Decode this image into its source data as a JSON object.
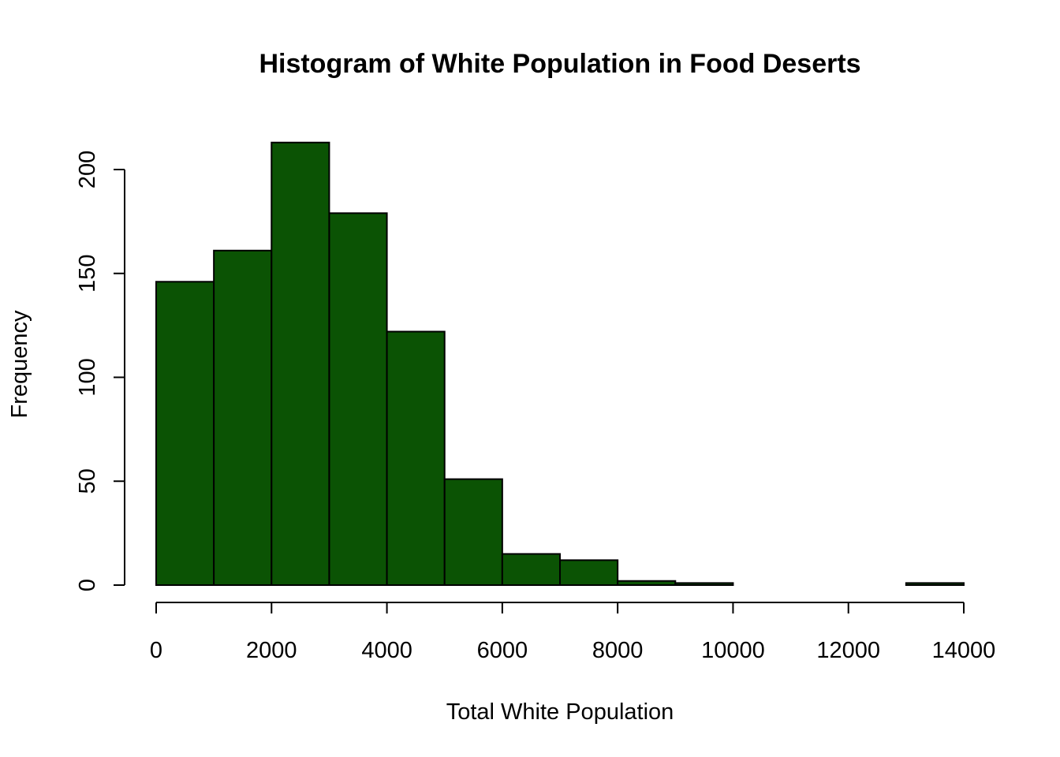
{
  "chart_data": {
    "type": "bar",
    "title": "Histogram of White Population in Food Deserts",
    "xlabel": "Total White Population",
    "ylabel": "Frequency",
    "bins": [
      {
        "start": 0,
        "end": 1000,
        "count": 146
      },
      {
        "start": 1000,
        "end": 2000,
        "count": 161
      },
      {
        "start": 2000,
        "end": 3000,
        "count": 213
      },
      {
        "start": 3000,
        "end": 4000,
        "count": 179
      },
      {
        "start": 4000,
        "end": 5000,
        "count": 122
      },
      {
        "start": 5000,
        "end": 6000,
        "count": 51
      },
      {
        "start": 6000,
        "end": 7000,
        "count": 15
      },
      {
        "start": 7000,
        "end": 8000,
        "count": 12
      },
      {
        "start": 8000,
        "end": 9000,
        "count": 2
      },
      {
        "start": 9000,
        "end": 10000,
        "count": 1
      },
      {
        "start": 10000,
        "end": 11000,
        "count": 0
      },
      {
        "start": 11000,
        "end": 12000,
        "count": 0
      },
      {
        "start": 12000,
        "end": 13000,
        "count": 0
      },
      {
        "start": 13000,
        "end": 14000,
        "count": 1
      }
    ],
    "xlim": [
      0,
      14000
    ],
    "ylim": [
      0,
      200
    ],
    "x_ticks": [
      0,
      2000,
      4000,
      6000,
      8000,
      10000,
      12000,
      14000
    ],
    "y_ticks": [
      0,
      50,
      100,
      150,
      200
    ],
    "bar_color": "#0b5304",
    "grid": false
  }
}
